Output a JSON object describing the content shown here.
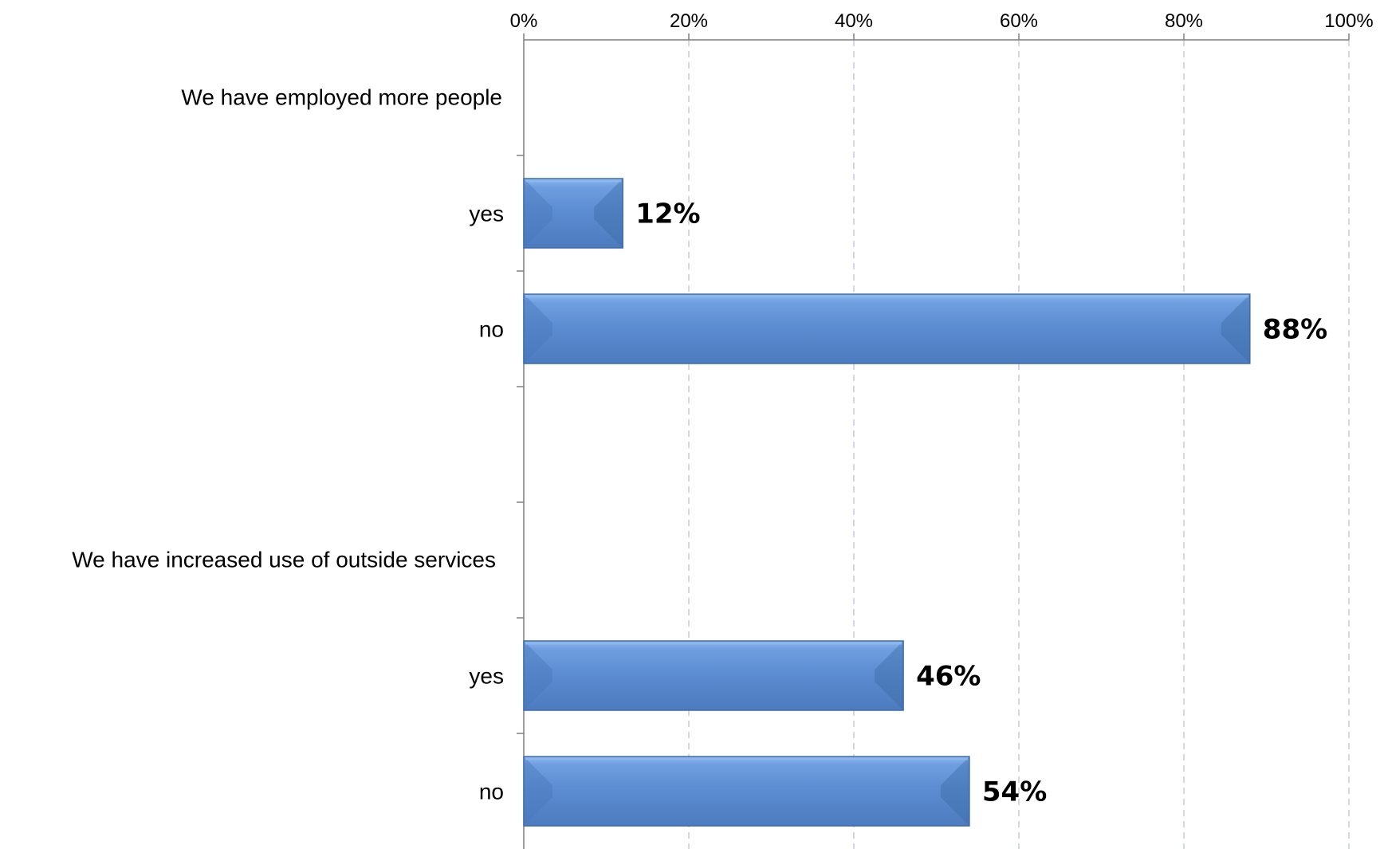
{
  "chart_data": {
    "type": "bar",
    "orientation": "horizontal",
    "xlim": [
      0,
      100
    ],
    "x_ticks": [
      "0%",
      "20%",
      "40%",
      "60%",
      "80%",
      "100%"
    ],
    "x_tick_values": [
      0,
      20,
      40,
      60,
      80,
      100
    ],
    "grid": true,
    "groups": [
      {
        "title": "We have employed more people",
        "bars": [
          {
            "label": "yes",
            "value": 12,
            "value_label": "12%"
          },
          {
            "label": "no",
            "value": 88,
            "value_label": "88%"
          }
        ]
      },
      {
        "title": "We have increased use of outside services",
        "bars": [
          {
            "label": "yes",
            "value": 46,
            "value_label": "46%"
          },
          {
            "label": "no",
            "value": 54,
            "value_label": "54%"
          }
        ]
      }
    ],
    "colors": {
      "bar_fill": "#5b8bd0",
      "bar_edge": "#3f6da8",
      "bar_highlight": "#8db8ee",
      "grid": "#c6ccd6",
      "axis": "#7f7f7f"
    }
  }
}
